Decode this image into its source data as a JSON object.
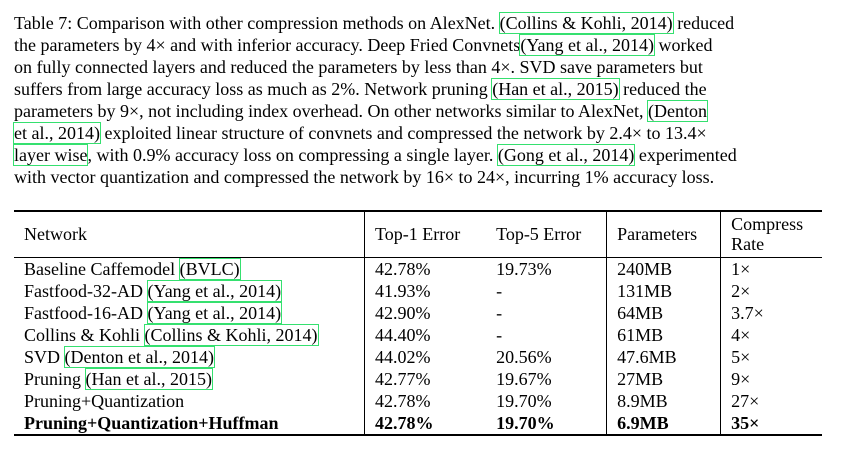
{
  "caption": {
    "lines": [
      [
        {
          "t": "Table 7: Comparison with other compression methods on AlexNet. "
        },
        {
          "t": "(Collins & Kohli, 2014)",
          "cite": true
        },
        {
          "t": " reduced"
        }
      ],
      [
        {
          "t": "the parameters by 4× and with inferior accuracy. Deep Fried Convnets"
        },
        {
          "t": "(Yang et al., 2014)",
          "cite": true
        },
        {
          "t": " worked"
        }
      ],
      [
        {
          "t": "on fully connected layers and reduced the parameters by less than 4×. SVD save parameters but"
        }
      ],
      [
        {
          "t": "suffers from large accuracy loss as much as 2%. Network pruning "
        },
        {
          "t": "(Han et al., 2015)",
          "cite": true
        },
        {
          "t": " reduced the"
        }
      ],
      [
        {
          "t": "parameters by 9×, not including index overhead. On other networks similar to AlexNet, "
        },
        {
          "t": "(Denton",
          "cite": true
        }
      ],
      [
        {
          "t": "et al., 2014)",
          "cite": true
        },
        {
          "t": " exploited linear structure of convnets and compressed the network by 2.4× to 13.4×"
        }
      ],
      [
        {
          "t": "layer wise",
          "cite": true
        },
        {
          "t": ", with 0.9% accuracy loss on compressing a single layer. "
        },
        {
          "t": "(Gong et al., 2014)",
          "cite": true
        },
        {
          "t": " experimented"
        }
      ],
      [
        {
          "t": "with vector quantization and compressed the network by 16× to 24×, incurring 1% accuracy loss."
        }
      ]
    ]
  },
  "table": {
    "headers": {
      "network": "Network",
      "top1": "Top-1 Error",
      "top5": "Top-5 Error",
      "params": "Parameters",
      "rate_line1": "Compress",
      "rate_line2": "Rate"
    },
    "rows": [
      {
        "network": [
          {
            "t": "Baseline Caffemodel "
          },
          {
            "t": "(BVLC)",
            "cite": true
          }
        ],
        "top1": "42.78%",
        "top5": "19.73%",
        "params": "240MB",
        "rate": "1×",
        "bold": false
      },
      {
        "network": [
          {
            "t": "Fastfood-32-AD "
          },
          {
            "t": "(Yang et al., 2014)",
            "cite": true
          }
        ],
        "top1": "41.93%",
        "top5": "-",
        "params": "131MB",
        "rate": "2×",
        "bold": false
      },
      {
        "network": [
          {
            "t": "Fastfood-16-AD "
          },
          {
            "t": "(Yang et al., 2014)",
            "cite": true
          }
        ],
        "top1": "42.90%",
        "top5": "-",
        "params": "64MB",
        "rate": "3.7×",
        "bold": false
      },
      {
        "network": [
          {
            "t": "Collins & Kohli "
          },
          {
            "t": "(Collins & Kohli, 2014)",
            "cite": true
          }
        ],
        "top1": "44.40%",
        "top5": "-",
        "params": "61MB",
        "rate": "4×",
        "bold": false
      },
      {
        "network": [
          {
            "t": "SVD "
          },
          {
            "t": "(Denton et al., 2014)",
            "cite": true
          }
        ],
        "top1": "44.02%",
        "top5": "20.56%",
        "params": "47.6MB",
        "rate": "5×",
        "bold": false
      },
      {
        "network": [
          {
            "t": "Pruning "
          },
          {
            "t": "(Han et al., 2015)",
            "cite": true
          }
        ],
        "top1": "42.77%",
        "top5": "19.67%",
        "params": "27MB",
        "rate": "9×",
        "bold": false
      },
      {
        "network": [
          {
            "t": "Pruning+Quantization"
          }
        ],
        "top1": "42.78%",
        "top5": "19.70%",
        "params": "8.9MB",
        "rate": "27×",
        "bold": false
      },
      {
        "network": [
          {
            "t": "Pruning+Quantization+Huffman"
          }
        ],
        "top1": "42.78%",
        "top5": "19.70%",
        "params": "6.9MB",
        "rate": "35×",
        "bold": true
      }
    ]
  },
  "colors": {
    "citation_box": "#35e06f",
    "text": "#000000",
    "background": "#ffffff"
  }
}
